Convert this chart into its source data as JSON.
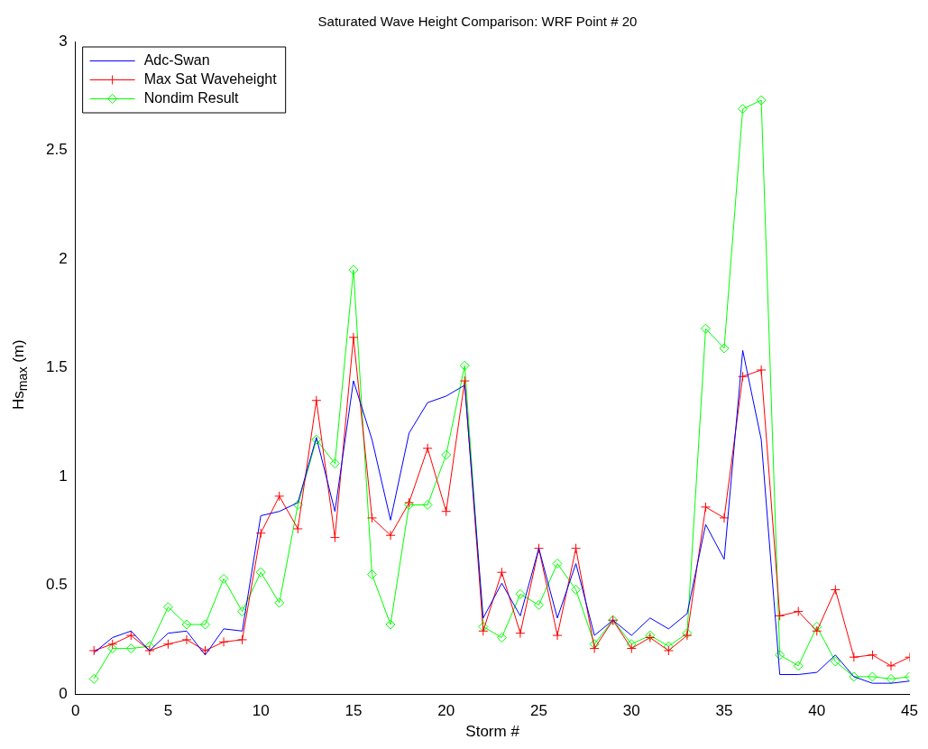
{
  "chart_data": {
    "type": "line",
    "title": "Saturated Wave Height Comparison: WRF Point # 20",
    "xlabel": "Storm #",
    "ylabel": "Hs$_{max}$ (m)",
    "x": [
      1,
      2,
      3,
      4,
      5,
      6,
      7,
      8,
      9,
      10,
      11,
      12,
      13,
      14,
      15,
      16,
      17,
      18,
      19,
      20,
      21,
      22,
      23,
      24,
      25,
      26,
      27,
      28,
      29,
      30,
      31,
      32,
      33,
      34,
      35,
      36,
      37,
      38,
      39,
      40,
      41,
      42,
      43,
      44,
      45
    ],
    "series": [
      {
        "name": "Adc-Swan",
        "color": "#0000ff",
        "marker": "none",
        "values": [
          0.19,
          0.26,
          0.29,
          0.2,
          0.28,
          0.29,
          0.18,
          0.3,
          0.29,
          0.82,
          0.84,
          0.88,
          1.18,
          0.84,
          1.44,
          1.17,
          0.8,
          1.2,
          1.34,
          1.37,
          1.42,
          0.35,
          0.51,
          0.36,
          0.67,
          0.35,
          0.6,
          0.27,
          0.34,
          0.27,
          0.35,
          0.3,
          0.37,
          0.78,
          0.62,
          1.58,
          1.17,
          0.09,
          0.09,
          0.1,
          0.18,
          0.08,
          0.05,
          0.05,
          0.06
        ]
      },
      {
        "name": "Max Sat Waveheight",
        "color": "#ff0000",
        "marker": "cross",
        "values": [
          0.2,
          0.23,
          0.27,
          0.2,
          0.23,
          0.25,
          0.2,
          0.24,
          0.25,
          0.74,
          0.91,
          0.76,
          1.35,
          0.72,
          1.64,
          0.81,
          0.73,
          0.88,
          1.13,
          0.84,
          1.44,
          0.29,
          0.56,
          0.28,
          0.67,
          0.27,
          0.67,
          0.21,
          0.34,
          0.21,
          0.26,
          0.2,
          0.27,
          0.86,
          0.81,
          1.46,
          1.49,
          0.36,
          0.38,
          0.29,
          0.48,
          0.17,
          0.18,
          0.13,
          0.17
        ]
      },
      {
        "name": "Nondim Result",
        "color": "#00ff00",
        "marker": "diamond",
        "values": [
          0.07,
          0.21,
          0.21,
          0.22,
          0.4,
          0.32,
          0.32,
          0.53,
          0.38,
          0.56,
          0.42,
          0.87,
          1.17,
          1.06,
          1.95,
          0.55,
          0.32,
          0.87,
          0.87,
          1.1,
          1.51,
          0.31,
          0.26,
          0.46,
          0.41,
          0.6,
          0.48,
          0.23,
          0.34,
          0.23,
          0.27,
          0.22,
          0.28,
          1.68,
          1.59,
          2.69,
          2.73,
          0.18,
          0.13,
          0.31,
          0.15,
          0.08,
          0.08,
          0.07,
          0.08
        ]
      }
    ],
    "xlim": [
      0,
      45
    ],
    "xticks": [
      0,
      5,
      10,
      15,
      20,
      25,
      30,
      35,
      40,
      45
    ],
    "ylim": [
      0,
      3
    ],
    "yticks": [
      0,
      0.5,
      1,
      1.5,
      2,
      2.5,
      3
    ],
    "grid": false,
    "legend": "top left",
    "line_style": "solid"
  }
}
